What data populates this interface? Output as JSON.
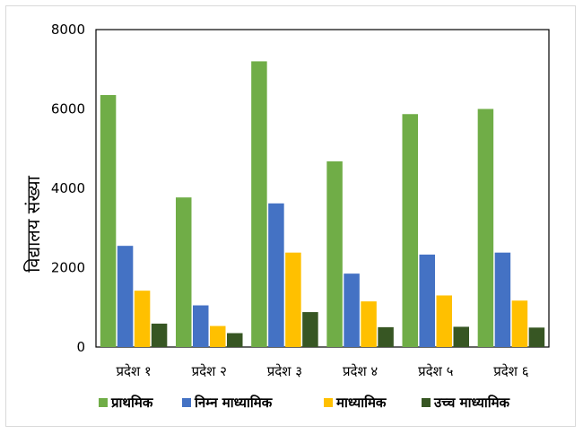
{
  "chart_data": {
    "type": "bar",
    "categories": [
      "प्रदेश १",
      "प्रदेश २",
      "प्रदेश ३",
      "प्रदेश ४",
      "प्रदेश ५",
      "प्रदेश ६"
    ],
    "series": [
      {
        "name": "प्राथमिक",
        "color": "#70AD47",
        "values": [
          6350,
          3770,
          7200,
          4680,
          5870,
          6000
        ]
      },
      {
        "name": "निम्न माध्यामिक",
        "color": "#4472C4",
        "values": [
          2550,
          1050,
          3620,
          1850,
          2330,
          2380
        ]
      },
      {
        "name": "माध्यामिक",
        "color": "#FFC000",
        "values": [
          1420,
          530,
          2380,
          1150,
          1300,
          1170
        ]
      },
      {
        "name": "उच्च माध्यामिक",
        "color": "#375623",
        "values": [
          590,
          350,
          880,
          500,
          510,
          490
        ]
      }
    ],
    "ylabel": "विद्यालय संख्या",
    "ylim": [
      0,
      8000
    ],
    "yticks": [
      0,
      2000,
      4000,
      6000,
      8000
    ],
    "legend_position": "bottom"
  }
}
